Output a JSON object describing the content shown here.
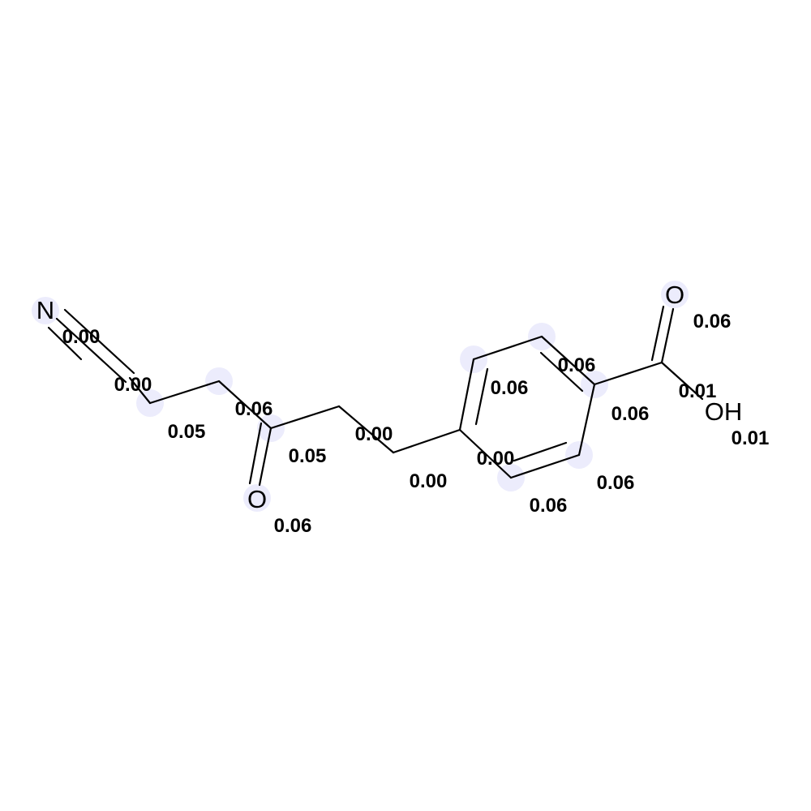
{
  "molecule": {
    "atoms": [
      {
        "id": "N1",
        "label": "N",
        "value": "0.00",
        "highlight": "#e6e6fb"
      },
      {
        "id": "C1",
        "label": "",
        "value": "0.00",
        "highlight": "#e6e6fb"
      },
      {
        "id": "C2",
        "label": "",
        "value": "0.05",
        "highlight": "#e6e6fb"
      },
      {
        "id": "C3",
        "label": "",
        "value": "0.06",
        "highlight": "#e6e6fb"
      },
      {
        "id": "C4",
        "label": "",
        "value": "0.05",
        "highlight": "#e6e6fb"
      },
      {
        "id": "O1",
        "label": "O",
        "value": "0.06",
        "highlight": "#e6e6fb"
      },
      {
        "id": "C5",
        "label": "",
        "value": "0.00",
        "highlight": "#e6e6fb"
      },
      {
        "id": "O2",
        "label": "",
        "value": "0.00",
        "highlight": "#e6e6fb"
      },
      {
        "id": "C6",
        "label": "",
        "value": "0.00",
        "highlight": "#e6e6fb"
      },
      {
        "id": "C7",
        "label": "",
        "value": "0.06",
        "highlight": "#e6e6fb"
      },
      {
        "id": "C8",
        "label": "",
        "value": "0.06",
        "highlight": "#e6e6fb"
      },
      {
        "id": "C9",
        "label": "",
        "value": "0.06",
        "highlight": "#e6e6fb"
      },
      {
        "id": "C10",
        "label": "",
        "value": "0.06",
        "highlight": "#e6e6fb"
      },
      {
        "id": "C11",
        "label": "",
        "value": "0.06",
        "highlight": "#e6e6fb"
      },
      {
        "id": "C12",
        "label": "",
        "value": "0.01",
        "highlight": "#e6e6fb"
      },
      {
        "id": "O3",
        "label": "O",
        "value": "0.06",
        "highlight": "#e6e6fb"
      },
      {
        "id": "O4",
        "label": "OH",
        "value": "0.01",
        "highlight": "#e6e6fb"
      }
    ],
    "bond_color": "#000000"
  }
}
